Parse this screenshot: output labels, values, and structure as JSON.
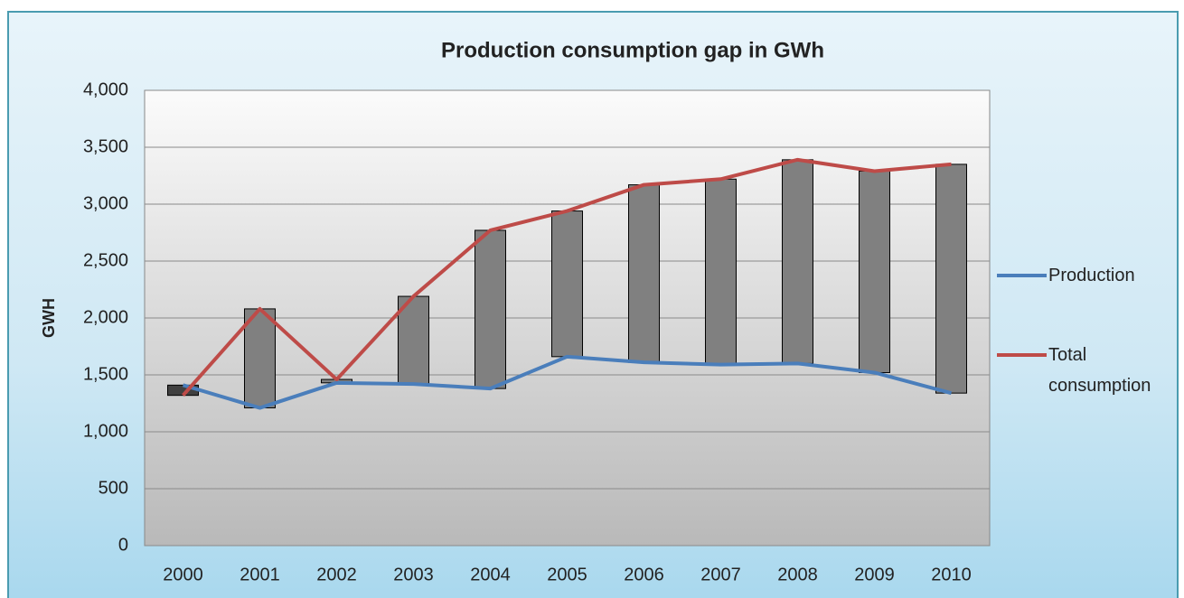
{
  "chart_data": {
    "type": "line",
    "title": "Production consumption gap in GWh",
    "y_label": "GWH",
    "categories": [
      "2000",
      "2001",
      "2002",
      "2003",
      "2004",
      "2005",
      "2006",
      "2007",
      "2008",
      "2009",
      "2010"
    ],
    "series": [
      {
        "name": "Production",
        "color": "#4a7ebb",
        "values": [
          1410,
          1210,
          1430,
          1420,
          1380,
          1660,
          1610,
          1590,
          1600,
          1520,
          1340
        ]
      },
      {
        "name": "Total consumption",
        "color": "#be4b48",
        "values": [
          1320,
          2080,
          1460,
          2190,
          2770,
          2940,
          3170,
          3220,
          3390,
          3290,
          3350
        ]
      }
    ],
    "up_down_bars": {
      "up_color": "#808080",
      "down_color": "#404040"
    },
    "ylim": [
      0,
      4000
    ],
    "yticks": [
      0,
      500,
      {
        "value": 1000,
        "label": "1,000"
      },
      {
        "value": 1500,
        "label": "1,500"
      },
      {
        "value": 2000,
        "label": "2,000"
      },
      {
        "value": 2500,
        "label": "2,500"
      },
      {
        "value": 3000,
        "label": "3,000"
      },
      {
        "value": 3500,
        "label": "3,500"
      },
      {
        "value": 4000,
        "label": "4,000"
      }
    ],
    "grid": true,
    "legend": "right"
  }
}
